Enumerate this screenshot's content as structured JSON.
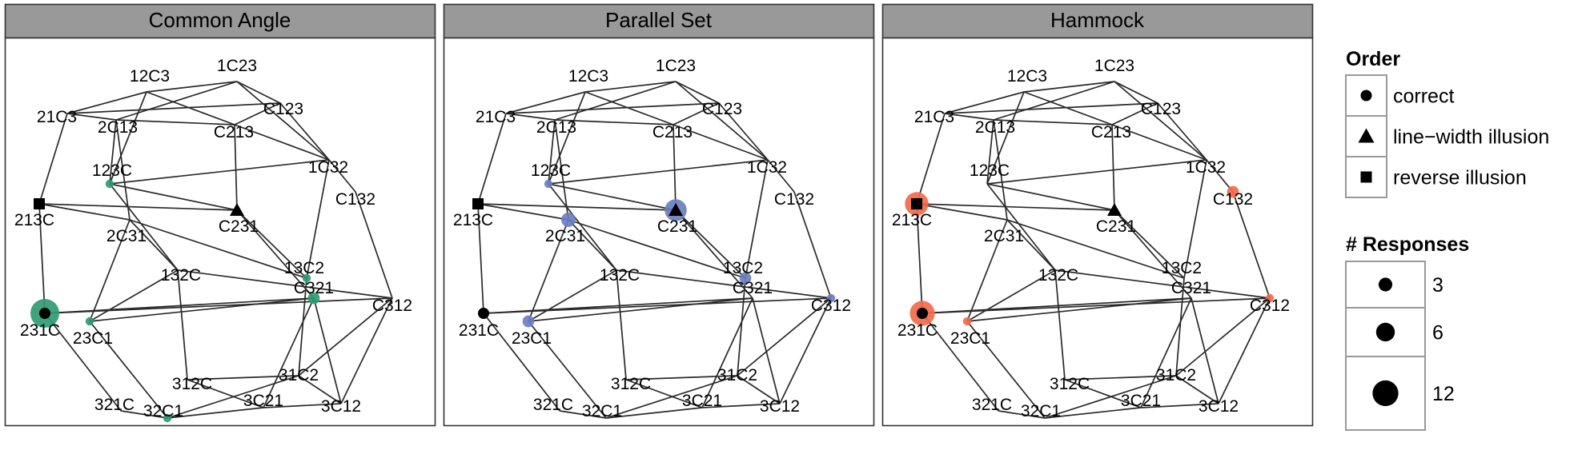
{
  "chart_data": {
    "type": "network",
    "panels": [
      {
        "title": "Common Angle",
        "color": "#2e9b73",
        "responses": {
          "123C": 1,
          "231C": 12,
          "23C1": 1,
          "13C2": 1,
          "C321": 2,
          "32C1": 1
        },
        "markers": {
          "231C": "correct",
          "C231": "line-width illusion",
          "213C": "reverse illusion"
        }
      },
      {
        "title": "Parallel Set",
        "color": "#6b7fbf",
        "responses": {
          "123C": 1,
          "2C31": 3,
          "C231": 7,
          "13C2": 2,
          "C312": 1,
          "23C1": 2,
          "231C": 1
        },
        "markers": {
          "231C": "correct",
          "C231": "line-width illusion",
          "213C": "reverse illusion"
        }
      },
      {
        "title": "Hammock",
        "color": "#f26a4b",
        "responses": {
          "213C": 8,
          "231C": 9,
          "23C1": 1,
          "C132": 2,
          "C312": 1
        },
        "markers": {
          "231C": "correct",
          "C231": "line-width illusion",
          "213C": "reverse illusion"
        }
      }
    ],
    "nodes": [
      "12C3",
      "1C23",
      "21C3",
      "2C13",
      "C213",
      "C123",
      "1C32",
      "C132",
      "123C",
      "213C",
      "C231",
      "2C31",
      "132C",
      "13C2",
      "231C",
      "23C1",
      "C321",
      "C312",
      "312C",
      "31C2",
      "321C",
      "32C1",
      "3C21",
      "3C12"
    ],
    "edges": [
      [
        "12C3",
        "1C23"
      ],
      [
        "12C3",
        "21C3"
      ],
      [
        "1C23",
        "C123"
      ],
      [
        "21C3",
        "2C13"
      ],
      [
        "2C13",
        "C213"
      ],
      [
        "C213",
        "C123"
      ],
      [
        "21C3",
        "213C"
      ],
      [
        "213C",
        "231C"
      ],
      [
        "231C",
        "321C"
      ],
      [
        "321C",
        "32C1"
      ],
      [
        "32C1",
        "3C21"
      ],
      [
        "3C21",
        "3C12"
      ],
      [
        "3C12",
        "C312"
      ],
      [
        "C312",
        "C132"
      ],
      [
        "C132",
        "1C32"
      ],
      [
        "1C32",
        "C123"
      ],
      [
        "2C13",
        "2C31"
      ],
      [
        "2C31",
        "23C1"
      ],
      [
        "23C1",
        "32C1"
      ],
      [
        "C213",
        "C231"
      ],
      [
        "C231",
        "C321"
      ],
      [
        "C321",
        "3C21"
      ],
      [
        "12C3",
        "123C"
      ],
      [
        "123C",
        "132C"
      ],
      [
        "132C",
        "312C"
      ],
      [
        "1C23",
        "1C32"
      ],
      [
        "1C32",
        "13C2"
      ],
      [
        "13C2",
        "31C2"
      ],
      [
        "31C2",
        "3C12"
      ],
      [
        "123C",
        "1C32"
      ],
      [
        "213C",
        "C231"
      ],
      [
        "2C31",
        "13C2"
      ],
      [
        "231C",
        "C312"
      ],
      [
        "23C1",
        "C321"
      ],
      [
        "132C",
        "C312"
      ],
      [
        "312C",
        "31C2"
      ],
      [
        "12C3",
        "C213"
      ],
      [
        "1C23",
        "2C13"
      ],
      [
        "21C3",
        "C123"
      ],
      [
        "2C13",
        "123C"
      ],
      [
        "C213",
        "1C32"
      ],
      [
        "123C",
        "C231"
      ],
      [
        "213C",
        "2C31"
      ],
      [
        "2C31",
        "132C"
      ],
      [
        "C231",
        "13C2"
      ],
      [
        "231C",
        "C321"
      ],
      [
        "23C1",
        "132C"
      ],
      [
        "312C",
        "3C21"
      ],
      [
        "31C2",
        "32C1"
      ],
      [
        "C321",
        "3C12"
      ],
      [
        "C312",
        "31C2"
      ]
    ],
    "legend": {
      "order_title": "Order",
      "order_items": [
        {
          "shape": "circle",
          "label": "correct"
        },
        {
          "shape": "triangle",
          "label": "line−width illusion"
        },
        {
          "shape": "square",
          "label": "reverse illusion"
        }
      ],
      "size_title": "# Responses",
      "size_items": [
        3,
        6,
        12
      ],
      "placement": "right"
    }
  }
}
